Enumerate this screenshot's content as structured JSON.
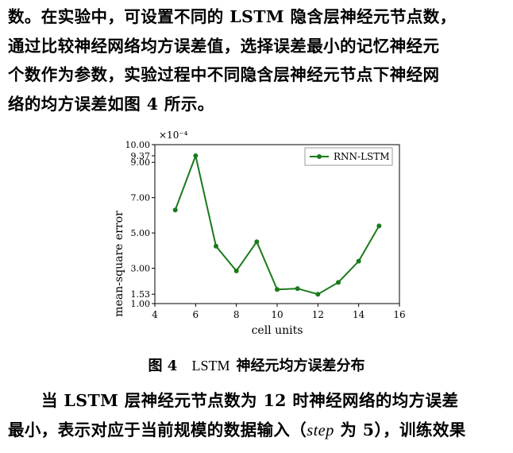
{
  "paragraph_top": {
    "lines": [
      "数。在实验中，可设置不同的 LSTM 隐含层神经元节点数，",
      "通过比较神经网络均方误差值，选择误差最小的记忆神经元",
      "个数作为参数，实验过程中不同隐含层神经元节点下神经网",
      "络的均方误差如图 4 所示。"
    ]
  },
  "caption": {
    "label": "图 4",
    "title_latin": "LSTM",
    "title_cn": "神经元均方误差分布"
  },
  "paragraph_bottom": {
    "line1": "当 LSTM 层神经元节点数为 12 时神经网络的均方误差",
    "line2_a": "最小，表示对应于当前规模的数据输入（",
    "line2_step": "step",
    "line2_b": " 为 5），训练效果"
  },
  "chart_data": {
    "type": "line",
    "xlabel": "cell units",
    "ylabel": "mean-square error",
    "y_multiplier": "×10⁻⁴",
    "xlim": [
      4,
      16
    ],
    "ylim": [
      1.0,
      10.0
    ],
    "xticks": [
      4,
      6,
      8,
      10,
      12,
      14,
      16
    ],
    "yticks": [
      "1.00",
      "1.53",
      "3.00",
      "5.00",
      "7.00",
      "9.00",
      "9.37",
      "10.00"
    ],
    "grid": false,
    "legend_position": "top-right",
    "line_color": "#1a7a1a",
    "series": [
      {
        "name": "RNN-LSTM",
        "x": [
          5,
          6,
          7,
          8,
          9,
          10,
          11,
          12,
          13,
          14,
          15
        ],
        "y": [
          6.3,
          9.37,
          4.25,
          2.85,
          4.5,
          1.8,
          1.85,
          1.53,
          2.2,
          3.4,
          5.4
        ]
      }
    ]
  }
}
